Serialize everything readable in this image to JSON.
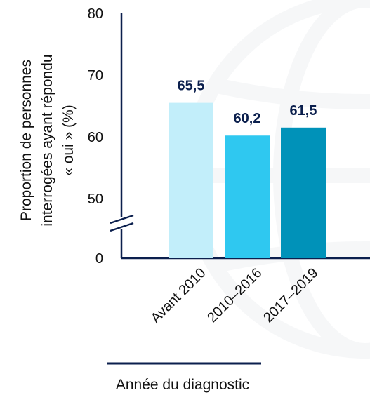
{
  "chart_data": {
    "type": "bar",
    "categories": [
      "Avant 2010",
      "2010–2016",
      "2017–2019"
    ],
    "values": [
      65.5,
      60.2,
      61.5
    ],
    "value_labels": [
      "65,5",
      "60,2",
      "61,5"
    ],
    "bar_colors": [
      "#c2eefa",
      "#2fc8f0",
      "#0092b9"
    ],
    "xlabel": "Année du diagnostic",
    "ylabel_lines": [
      "Proportion de personnes",
      "interrogées ayant répondu",
      "« oui » (%)"
    ],
    "y_ticks": [
      "0",
      "50",
      "60",
      "70",
      "80"
    ],
    "ylim": [
      0,
      80
    ],
    "axis_break": [
      0,
      50
    ],
    "grid": false,
    "label_color": "#0b1f4d",
    "axis_color": "#0b1f4d"
  }
}
